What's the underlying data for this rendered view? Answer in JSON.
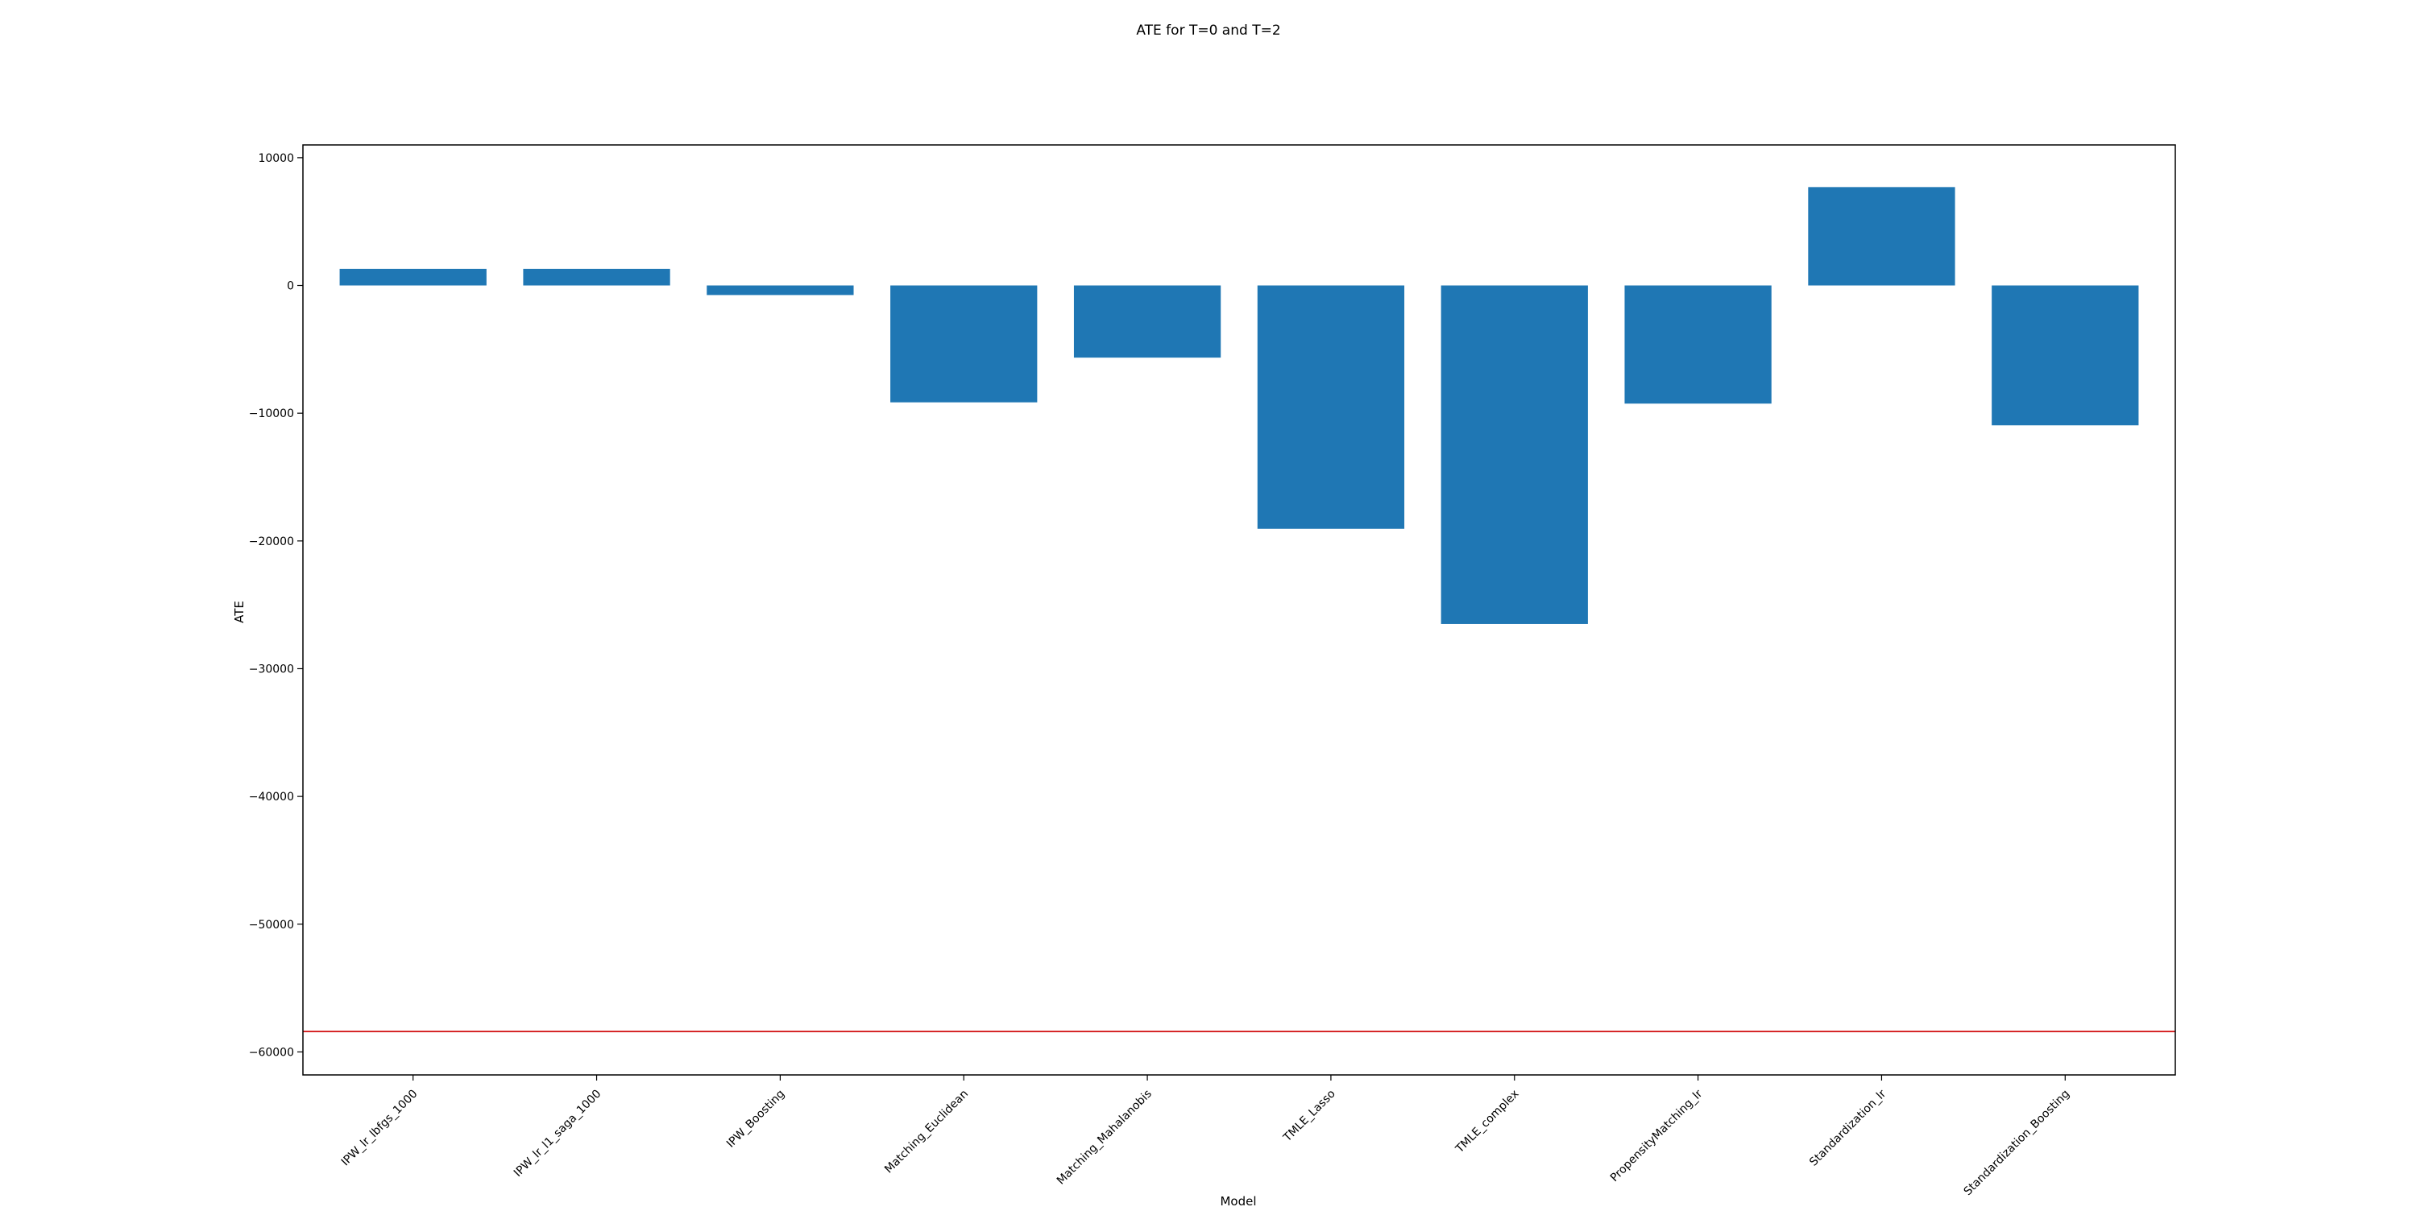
{
  "chart_data": {
    "type": "bar",
    "title": "ATE for T=0 and T=2",
    "xlabel": "Model",
    "ylabel": "ATE",
    "categories": [
      "IPW_lr_lbfgs_1000",
      "IPW_lr_l1_saga_1000",
      "IPW_Boosting",
      "Matching_Euclidean",
      "Matching_Mahalanobis",
      "TMLE_Lasso",
      "TMLE_complex",
      "PropensityMatching_lr",
      "Standardization_lr",
      "Standardization_Boosting"
    ],
    "values": [
      1300,
      1300,
      -750,
      -9150,
      -5650,
      -19050,
      -26500,
      -9250,
      7700,
      -10950
    ],
    "ylim": [
      -61800,
      11000
    ],
    "yticks": [
      10000,
      0,
      -10000,
      -20000,
      -30000,
      -40000,
      -50000,
      -60000
    ],
    "ytick_labels": [
      "10000",
      "0",
      "−10000",
      "−20000",
      "−30000",
      "−40000",
      "−50000",
      "−60000"
    ],
    "reference_line": {
      "y": -58400,
      "color": "#d62728"
    },
    "bar_color": "#1f77b4",
    "grid": false,
    "legend": "none"
  }
}
